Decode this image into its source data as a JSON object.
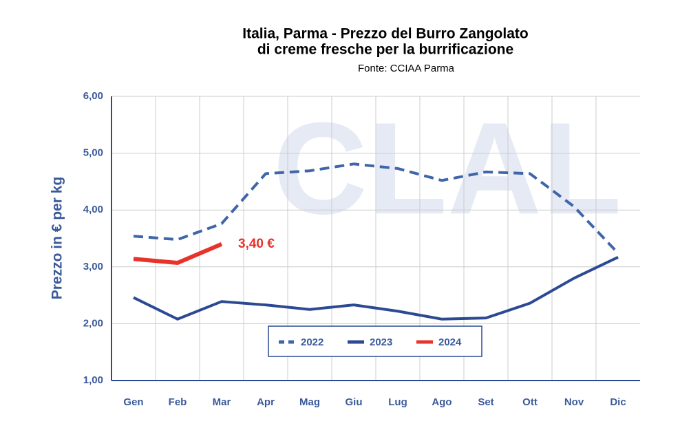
{
  "chart_data": {
    "type": "line",
    "title": [
      "Italia, Parma - Prezzo del Burro Zangolato",
      "di creme fresche per la burrificazione"
    ],
    "subtitle": "Fonte: CCIAA Parma",
    "watermark": "CLAL",
    "y_label": "Prezzo in € per kg",
    "categories": [
      "Gen",
      "Feb",
      "Mar",
      "Apr",
      "Mag",
      "Giu",
      "Lug",
      "Ago",
      "Set",
      "Ott",
      "Nov",
      "Dic"
    ],
    "series": [
      {
        "name": "2022",
        "color": "#3f66a8",
        "style": "dashed",
        "values": [
          3.54,
          3.48,
          3.76,
          4.64,
          4.69,
          4.81,
          4.73,
          4.52,
          4.67,
          4.64,
          4.06,
          3.24
        ]
      },
      {
        "name": "2023",
        "color": "#2c4a94",
        "style": "solid",
        "values": [
          2.46,
          2.08,
          2.39,
          2.33,
          2.25,
          2.33,
          2.22,
          2.08,
          2.1,
          2.36,
          2.8,
          3.17
        ]
      },
      {
        "name": "2024",
        "color": "#e8332a",
        "style": "solid",
        "values": [
          3.14,
          3.07,
          3.4,
          null,
          null,
          null,
          null,
          null,
          null,
          null,
          null,
          null
        ],
        "value_labels": [
          null,
          null,
          "3,40 €",
          null,
          null,
          null,
          null,
          null,
          null,
          null,
          null,
          null
        ]
      }
    ],
    "ylim": [
      1,
      6
    ],
    "yticks": [
      {
        "value": 1,
        "label": "1,00"
      },
      {
        "value": 2,
        "label": "2,00"
      },
      {
        "value": 3,
        "label": "3,00"
      },
      {
        "value": 4,
        "label": "4,00"
      },
      {
        "value": 5,
        "label": "5,00"
      },
      {
        "value": 6,
        "label": "6,00"
      }
    ],
    "grid": true,
    "legend": "bottom"
  }
}
